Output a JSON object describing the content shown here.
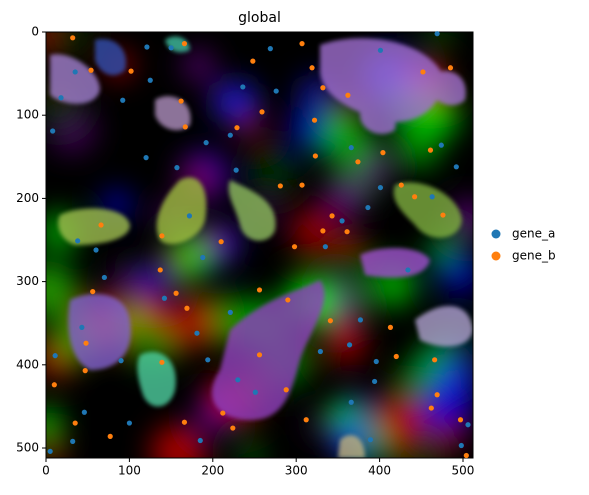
{
  "chart_data": {
    "type": "scatter",
    "title": "global",
    "xlim": [
      0,
      512
    ],
    "ylim": [
      512,
      0
    ],
    "xticks": [
      0,
      100,
      200,
      300,
      400,
      500
    ],
    "yticks": [
      0,
      100,
      200,
      300,
      400,
      500
    ],
    "legend": "right",
    "series": [
      {
        "name": "gene_a",
        "color": "#1f77b4",
        "x": [
          150,
          121,
          269,
          401,
          469,
          35,
          125,
          236,
          276,
          18,
          92,
          8,
          221,
          120,
          192,
          157,
          228,
          366,
          474,
          492,
          401,
          463,
          355,
          386,
          38,
          60,
          172,
          335,
          70,
          142,
          434,
          188,
          43,
          181,
          221,
          377,
          329,
          396,
          364,
          90,
          194,
          230,
          251,
          394,
          11,
          46,
          100,
          5,
          185,
          366,
          389,
          32,
          498,
          506
        ],
        "values": [
          19,
          18,
          20,
          22,
          2,
          48,
          58,
          66,
          71,
          79,
          82,
          119,
          124,
          151,
          133,
          163,
          166,
          139,
          136,
          162,
          187,
          198,
          227,
          211,
          251,
          262,
          221,
          258,
          295,
          320,
          286,
          271,
          355,
          362,
          337,
          346,
          384,
          396,
          376,
          395,
          394,
          418,
          433,
          420,
          389,
          457,
          470,
          504,
          491,
          445,
          490,
          492,
          497,
          472
        ]
      },
      {
        "name": "gene_b",
        "color": "#ff7f0e",
        "x": [
          32,
          54,
          102,
          166,
          307,
          248,
          319,
          332,
          362,
          259,
          162,
          167,
          229,
          322,
          485,
          452,
          461,
          404,
          426,
          323,
          374,
          281,
          307,
          442,
          476,
          343,
          332,
          298,
          361,
          66,
          139,
          210,
          137,
          56,
          156,
          169,
          256,
          290,
          341,
          413,
          256,
          288,
          312,
          212,
          224,
          166,
          139,
          47,
          10,
          35,
          77,
          466,
          469,
          497,
          462,
          504,
          420,
          48
        ],
        "values": [
          7,
          46,
          47,
          14,
          14,
          35,
          43,
          67,
          76,
          96,
          83,
          114,
          115,
          106,
          43,
          48,
          142,
          145,
          184,
          149,
          156,
          185,
          184,
          198,
          220,
          221,
          239,
          258,
          240,
          232,
          245,
          252,
          286,
          312,
          314,
          332,
          310,
          322,
          347,
          355,
          388,
          430,
          466,
          458,
          476,
          469,
          397,
          407,
          424,
          470,
          486,
          394,
          436,
          466,
          452,
          509,
          390,
          374
        ]
      }
    ]
  }
}
